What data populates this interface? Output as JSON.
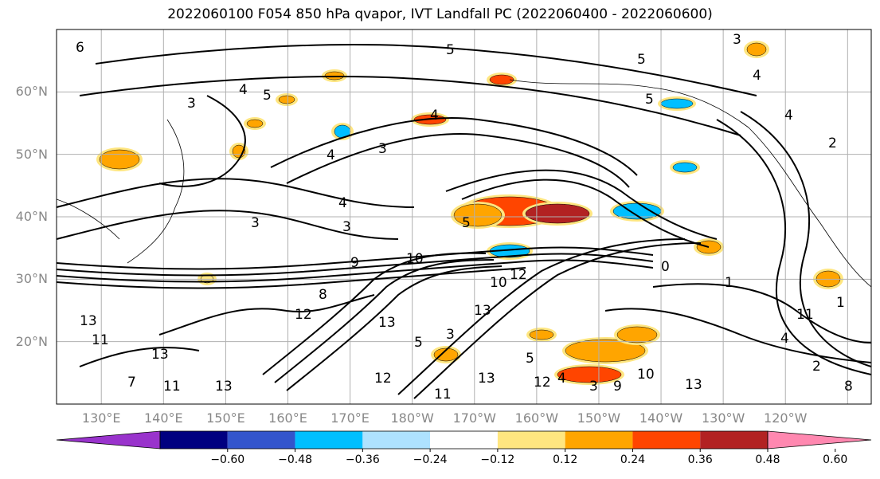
{
  "title": "2022060100 F054 850 hPa qvapor, IVT Landfall PC (2022060400 - 2022060600)",
  "map": {
    "lat_labels": [
      {
        "deg": 60,
        "label": "60°N"
      },
      {
        "deg": 50,
        "label": "50°N"
      },
      {
        "deg": 40,
        "label": "40°N"
      },
      {
        "deg": 30,
        "label": "30°N"
      },
      {
        "deg": 20,
        "label": "20°N"
      }
    ],
    "lon_labels": [
      {
        "deg": 130,
        "label": "130°E"
      },
      {
        "deg": 140,
        "label": "140°E"
      },
      {
        "deg": 150,
        "label": "150°E"
      },
      {
        "deg": 160,
        "label": "160°E"
      },
      {
        "deg": 170,
        "label": "170°E"
      },
      {
        "deg": 180,
        "label": "180°W"
      },
      {
        "deg": 190,
        "label": "170°W"
      },
      {
        "deg": 200,
        "label": "160°W"
      },
      {
        "deg": 210,
        "label": "150°W"
      },
      {
        "deg": 220,
        "label": "140°W"
      },
      {
        "deg": 230,
        "label": "130°W"
      },
      {
        "deg": 240,
        "label": "120°W"
      }
    ],
    "lon_range": [
      122.8,
      253.8
    ],
    "lat_range": [
      10,
      70
    ],
    "contour_labels": [
      "6",
      "3",
      "4",
      "5",
      "3",
      "4",
      "5",
      "3",
      "4",
      "5",
      "5",
      "3",
      "4",
      "4",
      "5",
      "2",
      "3",
      "4",
      "5",
      "7",
      "11",
      "13",
      "13",
      "11",
      "13",
      "12",
      "11",
      "13",
      "12",
      "13",
      "10",
      "9",
      "8",
      "10",
      "12",
      "13",
      "11",
      "1",
      "0",
      "1",
      "4",
      "2",
      "3",
      "4",
      "5",
      "3",
      "10",
      "9",
      "8",
      "12",
      "13"
    ],
    "gridlines": true
  },
  "colorbar": {
    "colors": [
      "#9933cc",
      "#000080",
      "#3355cc",
      "#00bfff",
      "#aee2ff",
      "#ffffff",
      "#ffe680",
      "#ffa500",
      "#ff4500",
      "#b22222",
      "#ff88b0"
    ],
    "ticks": [
      "−0.60",
      "−0.48",
      "−0.36",
      "−0.24",
      "−0.12",
      "0.12",
      "0.24",
      "0.36",
      "0.48",
      "0.60"
    ]
  }
}
